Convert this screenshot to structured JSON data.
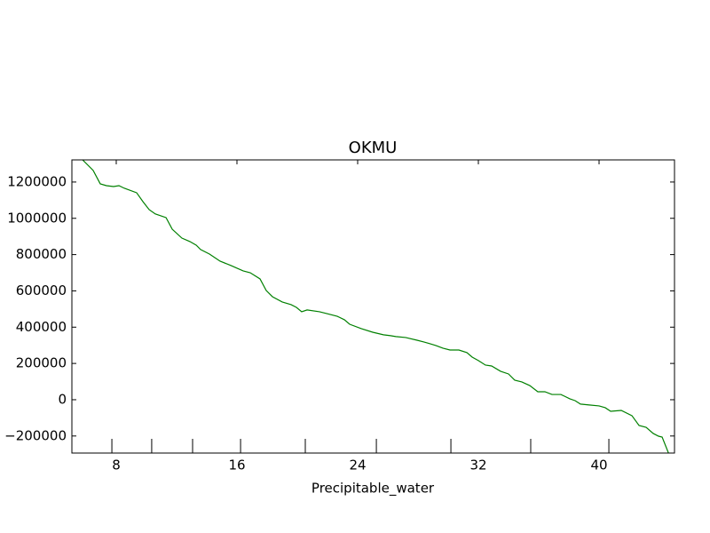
{
  "chart_data": {
    "type": "line",
    "title": "OKMU",
    "x_label": "Precipitable_water",
    "xlim": [
      5.06,
      45.0
    ],
    "ylim": [
      -294000,
      1322000
    ],
    "xticks": [
      8,
      16,
      24,
      32,
      40
    ],
    "yticks": [
      {
        "value": -200000,
        "label": "−200000"
      },
      0,
      200000,
      400000,
      600000,
      800000,
      1000000,
      1200000
    ],
    "bottom_ticks": [
      7.71,
      10.35,
      13.06,
      16.24,
      20.53,
      25.24,
      30.18,
      35.47,
      40.65
    ],
    "series": [
      {
        "color": "#008000",
        "x": [
          5.77,
          6.47,
          6.94,
          7.35,
          7.82,
          8.18,
          8.53,
          9.35,
          9.77,
          10.18,
          10.59,
          11.3,
          11.71,
          12.35,
          12.88,
          13.3,
          13.59,
          14.18,
          14.88,
          15.59,
          16.41,
          16.88,
          17.53,
          17.94,
          18.35,
          19.0,
          19.59,
          19.94,
          20.29,
          20.65,
          21.47,
          21.94,
          22.65,
          23.12,
          23.47,
          24.24,
          25.0,
          25.71,
          26.18,
          26.53,
          27.18,
          27.94,
          28.41,
          28.77,
          29.18,
          29.65,
          30.12,
          30.71,
          31.24,
          31.59,
          32.0,
          32.47,
          32.88,
          33.47,
          34.0,
          34.41,
          34.88,
          35.41,
          35.94,
          36.41,
          36.88,
          37.47,
          38.06,
          38.41,
          38.77,
          39.35,
          40.0,
          40.41,
          40.77,
          41.47,
          42.18,
          42.65,
          43.12,
          43.59,
          43.94,
          44.18,
          44.65
        ],
        "values": [
          1322000,
          1264000,
          1190000,
          1180000,
          1175000,
          1180000,
          1166000,
          1141000,
          1092000,
          1048000,
          1024000,
          1004000,
          940000,
          891000,
          872000,
          852000,
          828000,
          803000,
          764000,
          740000,
          710000,
          700000,
          666000,
          602000,
          568000,
          539000,
          524000,
          509000,
          485000,
          495000,
          485000,
          475000,
          460000,
          441000,
          416000,
          392000,
          372000,
          358000,
          353000,
          348000,
          343000,
          328000,
          318000,
          309000,
          299000,
          284000,
          274000,
          274000,
          260000,
          235000,
          216000,
          191000,
          186000,
          157000,
          142000,
          108000,
          98000,
          78000,
          44000,
          44000,
          29000,
          29000,
          5000,
          -5000,
          -24000,
          -29000,
          -34000,
          -44000,
          -64000,
          -59000,
          -88000,
          -142000,
          -152000,
          -186000,
          -201000,
          -206000,
          -304000
        ]
      }
    ]
  }
}
